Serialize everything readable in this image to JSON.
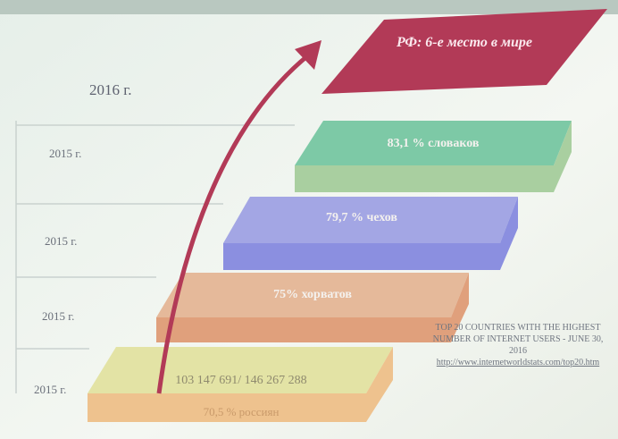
{
  "banner": "РФ: 6-е место в мире",
  "year_top": "2016 г.",
  "years": [
    "2015 г.",
    "2015 г.",
    "2015 г.",
    "2015 г."
  ],
  "steps": [
    "83,1 % словаков",
    "79,7 % чехов",
    "75% хорватов",
    "103 147 691/ 146 267 288"
  ],
  "bottom_label": "70,5 % россиян",
  "source": {
    "title": "TOP 20 COUNTRIES WITH THE HIGHEST NUMBER OF INTERNET USERS - JUNE 30, 2016",
    "url": "http://www.internetworldstats.com/top20.htm"
  }
}
